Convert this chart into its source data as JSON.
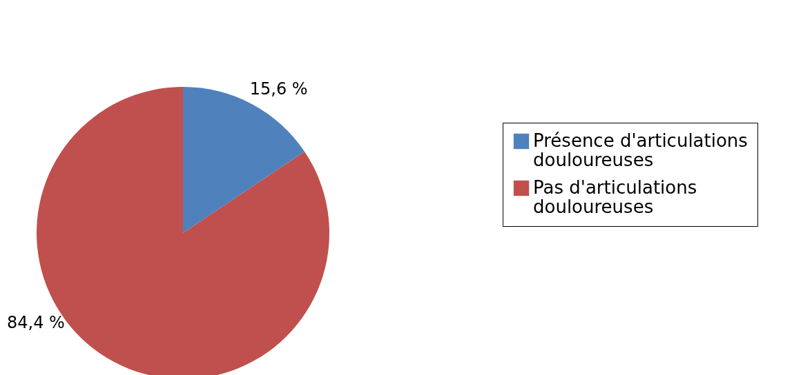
{
  "chart_data": {
    "type": "pie",
    "categories": [
      "Présence d'articulations douloureuses",
      "Pas d'articulations douloureuses"
    ],
    "values": [
      15.6,
      84.4
    ],
    "colors": [
      "#4f81bd",
      "#c0504d"
    ],
    "value_labels": [
      "15,6 %",
      "84,4 %"
    ],
    "legend": "right"
  }
}
